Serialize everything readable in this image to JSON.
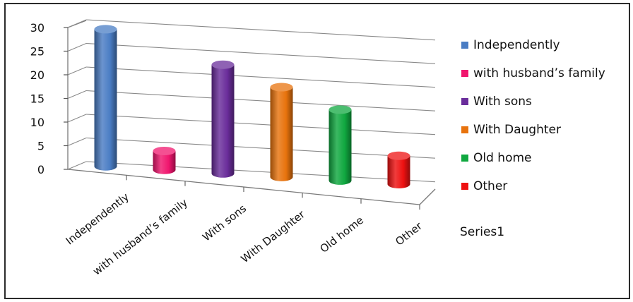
{
  "chart_data": {
    "type": "bar",
    "categories": [
      "Independently",
      "with husband’s family",
      "With sons",
      "With Daughter",
      "Old home",
      "Other"
    ],
    "series": [
      {
        "name": "Series1",
        "values": [
          29,
          4,
          23,
          19,
          15,
          6
        ],
        "colors": [
          "#4a7dc4",
          "#f0166e",
          "#6a2d9b",
          "#e8730d",
          "#10a840",
          "#ee1111"
        ]
      }
    ],
    "ylim": [
      0,
      30
    ],
    "yticks": [
      0,
      5,
      10,
      15,
      20,
      25,
      30
    ],
    "grid": true,
    "style": "3d-cylinder",
    "legend": {
      "placement": "right",
      "entries": [
        {
          "label": "Independently",
          "color": "#4a7dc4"
        },
        {
          "label": "with husband’s family",
          "color": "#f0166e"
        },
        {
          "label": "With sons",
          "color": "#6a2d9b"
        },
        {
          "label": "With Daughter",
          "color": "#e8730d"
        },
        {
          "label": "Old home",
          "color": "#10a840"
        },
        {
          "label": "Other",
          "color": "#ee1111"
        }
      ]
    },
    "series_label": "Series1"
  }
}
